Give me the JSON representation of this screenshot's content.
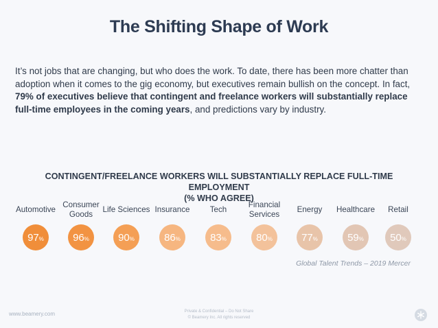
{
  "title": "The Shifting Shape of Work",
  "intro": {
    "part1": "It’s not jobs that are changing, but who does the work. To date, there has been more chatter than adoption when it comes to the gig economy, but executives remain bullish on the concept. In fact, ",
    "bold": "79% of executives believe that contingent and freelance workers will substantially replace full-time employees in the coming years",
    "part2": ", and predictions vary by industry."
  },
  "chart_data": {
    "type": "table",
    "title_line1": "CONTINGENT/FREELANCE WORKERS WILL SUBSTANTIALLY REPLACE FULL-TIME EMPLOYMENT",
    "title_line2": "(% WHO AGREE)",
    "unit": "%",
    "rows": [
      {
        "label": "Automotive",
        "value": 97,
        "display": "97",
        "color": "#f08e3a"
      },
      {
        "label": "Consumer Goods",
        "value": 96,
        "display": "96",
        "color": "#f29342"
      },
      {
        "label": "Life Sciences",
        "value": 90,
        "display": "90",
        "color": "#f49f55"
      },
      {
        "label": "Insurance",
        "value": 86,
        "display": "86",
        "color": "#f6b680"
      },
      {
        "label": "Tech",
        "value": 83,
        "display": "83",
        "color": "#f6bc8c"
      },
      {
        "label": "Financial Services",
        "value": 80,
        "display": "80",
        "color": "#f3c29b"
      },
      {
        "label": "Energy",
        "value": 77,
        "display": "77",
        "color": "#e8c4a9"
      },
      {
        "label": "Healthcare",
        "value": 59,
        "display": "59",
        "color": "#e2c6b4"
      },
      {
        "label": "Retail",
        "value": 50,
        "display": "50",
        "color": "#e0c9bb"
      }
    ]
  },
  "source": "Global Talent Trends – 2019  Mercer",
  "footer": {
    "website": "www.beamery.com",
    "confidential": "Private & Confidential – Do Not Share",
    "rights": "© Beamery Inc. All rights reserved",
    "logo_icon": "beamery-logo-icon"
  }
}
